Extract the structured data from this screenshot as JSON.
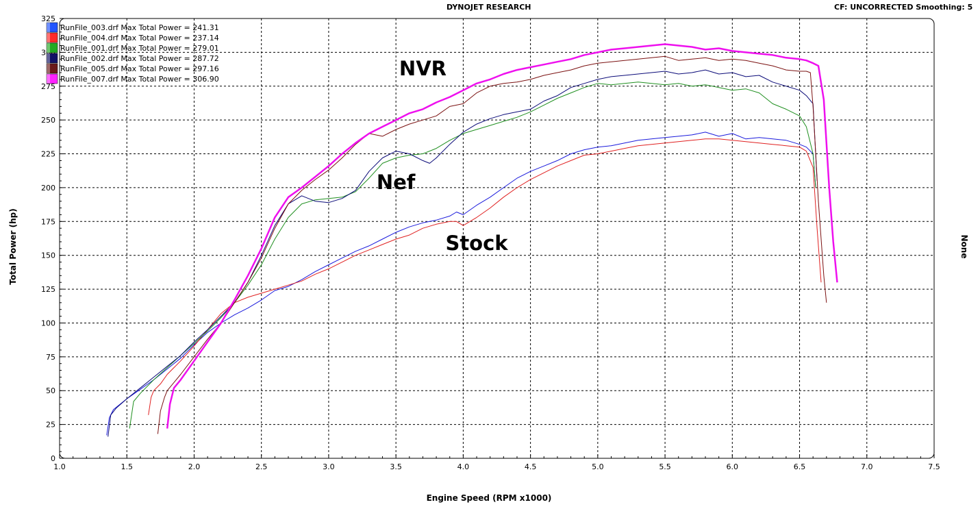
{
  "header": {
    "title": "DYNOJET RESEARCH",
    "right_info": "CF: UNCORRECTED  Smoothing: 5"
  },
  "right_axis_label": "None",
  "chart_data": {
    "type": "line",
    "title": "DYNOJET RESEARCH",
    "xlabel": "Engine Speed (RPM x1000)",
    "ylabel": "Total Power (hp)",
    "xlim": [
      1.0,
      7.5
    ],
    "ylim": [
      0,
      325
    ],
    "x_ticks": [
      "1.0",
      "1.5",
      "2.0",
      "2.5",
      "3.0",
      "3.5",
      "4.0",
      "4.5",
      "5.0",
      "5.5",
      "6.0",
      "6.5",
      "7.0",
      "7.5"
    ],
    "y_ticks": [
      "0",
      "25",
      "50",
      "75",
      "100",
      "125",
      "150",
      "175",
      "200",
      "225",
      "250",
      "275",
      "300",
      "325"
    ],
    "grid": true,
    "legend_position": "top-left",
    "annotations": [
      {
        "text": "NVR",
        "x": 3.7,
        "y": 283
      },
      {
        "text": "Nef",
        "x": 3.5,
        "y": 199
      },
      {
        "text": "Stock",
        "x": 4.1,
        "y": 154
      }
    ],
    "series": [
      {
        "name": "RunFile_003.drf Max Total Power = 241.31",
        "color": "#1a1adc",
        "swatch": "#2255ff",
        "width": 1,
        "x": [
          1.35,
          1.37,
          1.4,
          1.45,
          1.5,
          1.6,
          1.7,
          1.8,
          1.9,
          2.0,
          2.1,
          2.2,
          2.3,
          2.4,
          2.5,
          2.6,
          2.7,
          2.8,
          2.9,
          3.0,
          3.1,
          3.2,
          3.3,
          3.4,
          3.5,
          3.6,
          3.7,
          3.8,
          3.9,
          3.95,
          4.0,
          4.1,
          4.2,
          4.3,
          4.4,
          4.5,
          4.6,
          4.7,
          4.8,
          4.9,
          5.0,
          5.1,
          5.2,
          5.3,
          5.4,
          5.5,
          5.6,
          5.7,
          5.8,
          5.9,
          6.0,
          6.1,
          6.2,
          6.3,
          6.4,
          6.5,
          6.55,
          6.6,
          6.62
        ],
        "y": [
          17,
          30,
          36,
          40,
          44,
          51,
          58,
          66,
          74,
          84,
          93,
          100,
          106,
          111,
          117,
          124,
          127,
          132,
          138,
          143,
          148,
          153,
          157,
          162,
          167,
          171,
          174,
          176,
          179,
          182,
          180,
          187,
          193,
          200,
          207,
          212,
          216,
          220,
          225,
          228,
          230,
          231,
          233,
          235,
          236,
          237,
          238,
          239,
          241,
          238,
          240,
          236,
          237,
          236,
          235,
          232,
          230,
          225,
          200
        ]
      },
      {
        "name": "RunFile_004.drf Max Total Power = 237.14",
        "color": "#e02020",
        "swatch": "#ff2a2a",
        "width": 1,
        "x": [
          1.66,
          1.68,
          1.7,
          1.75,
          1.8,
          1.9,
          2.0,
          2.1,
          2.2,
          2.3,
          2.4,
          2.5,
          2.6,
          2.7,
          2.8,
          2.9,
          3.0,
          3.1,
          3.2,
          3.3,
          3.4,
          3.5,
          3.6,
          3.7,
          3.8,
          3.9,
          3.95,
          4.0,
          4.1,
          4.2,
          4.3,
          4.4,
          4.5,
          4.6,
          4.7,
          4.8,
          4.9,
          5.0,
          5.1,
          5.2,
          5.3,
          5.4,
          5.5,
          5.6,
          5.7,
          5.8,
          5.9,
          6.0,
          6.1,
          6.2,
          6.3,
          6.4,
          6.5,
          6.55,
          6.6,
          6.63,
          6.66
        ],
        "y": [
          32,
          45,
          50,
          55,
          62,
          72,
          83,
          95,
          107,
          115,
          119,
          122,
          125,
          128,
          131,
          136,
          140,
          145,
          150,
          154,
          158,
          162,
          165,
          170,
          173,
          175,
          175,
          172,
          178,
          185,
          193,
          200,
          206,
          211,
          216,
          220,
          224,
          225,
          227,
          229,
          231,
          232,
          233,
          234,
          235,
          236,
          236,
          235,
          234,
          233,
          232,
          231,
          230,
          227,
          215,
          170,
          130
        ]
      },
      {
        "name": "RunFile_001.drf Max Total Power = 279.01",
        "color": "#1f8f1f",
        "swatch": "#22aa22",
        "width": 1,
        "x": [
          1.52,
          1.55,
          1.6,
          1.7,
          1.8,
          1.9,
          2.0,
          2.1,
          2.2,
          2.3,
          2.4,
          2.5,
          2.6,
          2.7,
          2.8,
          2.9,
          3.0,
          3.1,
          3.2,
          3.3,
          3.4,
          3.5,
          3.6,
          3.7,
          3.8,
          3.9,
          4.0,
          4.1,
          4.2,
          4.3,
          4.4,
          4.5,
          4.6,
          4.7,
          4.8,
          4.9,
          5.0,
          5.1,
          5.2,
          5.3,
          5.4,
          5.5,
          5.6,
          5.7,
          5.8,
          5.9,
          6.0,
          6.1,
          6.2,
          6.3,
          6.4,
          6.5,
          6.55,
          6.6,
          6.62
        ],
        "y": [
          22,
          42,
          48,
          58,
          67,
          76,
          85,
          94,
          104,
          115,
          128,
          143,
          162,
          178,
          188,
          191,
          192,
          193,
          197,
          207,
          218,
          222,
          224,
          225,
          229,
          235,
          240,
          243,
          246,
          249,
          252,
          256,
          261,
          266,
          270,
          274,
          277,
          276,
          277,
          278,
          277,
          276,
          277,
          275,
          276,
          274,
          272,
          273,
          270,
          262,
          258,
          253,
          245,
          225,
          200
        ]
      },
      {
        "name": "RunFile_002.drf Max Total Power = 287.72",
        "color": "#0a0a78",
        "swatch": "#121266",
        "width": 1,
        "x": [
          1.36,
          1.38,
          1.42,
          1.5,
          1.6,
          1.7,
          1.8,
          1.9,
          2.0,
          2.1,
          2.2,
          2.3,
          2.4,
          2.5,
          2.6,
          2.7,
          2.8,
          2.9,
          3.0,
          3.1,
          3.2,
          3.3,
          3.4,
          3.5,
          3.6,
          3.7,
          3.75,
          3.8,
          3.9,
          4.0,
          4.1,
          4.2,
          4.3,
          4.4,
          4.5,
          4.6,
          4.7,
          4.8,
          4.9,
          5.0,
          5.1,
          5.2,
          5.3,
          5.4,
          5.5,
          5.6,
          5.7,
          5.8,
          5.9,
          6.0,
          6.1,
          6.2,
          6.3,
          6.4,
          6.5,
          6.55,
          6.6,
          6.63
        ],
        "y": [
          16,
          32,
          37,
          44,
          52,
          60,
          68,
          76,
          86,
          95,
          105,
          115,
          130,
          150,
          172,
          188,
          194,
          190,
          189,
          192,
          198,
          212,
          222,
          227,
          225,
          220,
          218,
          222,
          232,
          241,
          247,
          251,
          254,
          256,
          258,
          264,
          268,
          274,
          277,
          280,
          282,
          283,
          284,
          285,
          286,
          284,
          285,
          287,
          284,
          285,
          282,
          283,
          278,
          275,
          272,
          268,
          262,
          205
        ]
      },
      {
        "name": "RunFile_005.drf Max Total Power = 297.16",
        "color": "#7a1010",
        "swatch": "#6a1a1a",
        "width": 1,
        "x": [
          1.73,
          1.75,
          1.78,
          1.8,
          1.9,
          2.0,
          2.1,
          2.2,
          2.3,
          2.4,
          2.5,
          2.6,
          2.7,
          2.8,
          2.9,
          3.0,
          3.1,
          3.2,
          3.3,
          3.4,
          3.5,
          3.6,
          3.7,
          3.8,
          3.9,
          4.0,
          4.1,
          4.2,
          4.3,
          4.4,
          4.5,
          4.6,
          4.7,
          4.8,
          4.9,
          5.0,
          5.1,
          5.2,
          5.3,
          5.4,
          5.5,
          5.6,
          5.7,
          5.8,
          5.9,
          6.0,
          6.1,
          6.2,
          6.3,
          6.4,
          6.5,
          6.55,
          6.58,
          6.6,
          6.64,
          6.68,
          6.7
        ],
        "y": [
          18,
          35,
          45,
          50,
          62,
          75,
          88,
          100,
          115,
          130,
          148,
          170,
          188,
          198,
          206,
          213,
          222,
          232,
          240,
          238,
          243,
          247,
          250,
          253,
          260,
          262,
          270,
          275,
          277,
          278,
          280,
          283,
          285,
          287,
          290,
          292,
          293,
          294,
          295,
          296,
          297,
          294,
          295,
          296,
          294,
          295,
          294,
          292,
          290,
          287,
          286,
          286,
          285,
          260,
          190,
          135,
          115
        ]
      },
      {
        "name": "RunFile_007.drf Max Total Power = 306.90",
        "color": "#ee10ee",
        "swatch": "#ff22ff",
        "width": 2.5,
        "x": [
          1.8,
          1.82,
          1.85,
          1.9,
          2.0,
          2.1,
          2.2,
          2.3,
          2.4,
          2.5,
          2.6,
          2.7,
          2.8,
          2.9,
          3.0,
          3.1,
          3.2,
          3.3,
          3.4,
          3.5,
          3.6,
          3.7,
          3.8,
          3.9,
          4.0,
          4.1,
          4.2,
          4.3,
          4.4,
          4.5,
          4.6,
          4.7,
          4.8,
          4.9,
          5.0,
          5.1,
          5.2,
          5.3,
          5.4,
          5.5,
          5.6,
          5.7,
          5.8,
          5.9,
          6.0,
          6.1,
          6.2,
          6.3,
          6.4,
          6.5,
          6.55,
          6.6,
          6.64,
          6.68,
          6.72,
          6.75,
          6.78
        ],
        "y": [
          22,
          40,
          52,
          58,
          72,
          86,
          100,
          117,
          135,
          155,
          178,
          193,
          200,
          208,
          216,
          225,
          233,
          240,
          245,
          250,
          255,
          258,
          263,
          267,
          272,
          277,
          280,
          284,
          287,
          289,
          291,
          293,
          295,
          298,
          300,
          302,
          303,
          304,
          305,
          306,
          305,
          304,
          302,
          303,
          301,
          300,
          299,
          298,
          296,
          295,
          294,
          292,
          290,
          265,
          200,
          160,
          130
        ]
      }
    ]
  }
}
